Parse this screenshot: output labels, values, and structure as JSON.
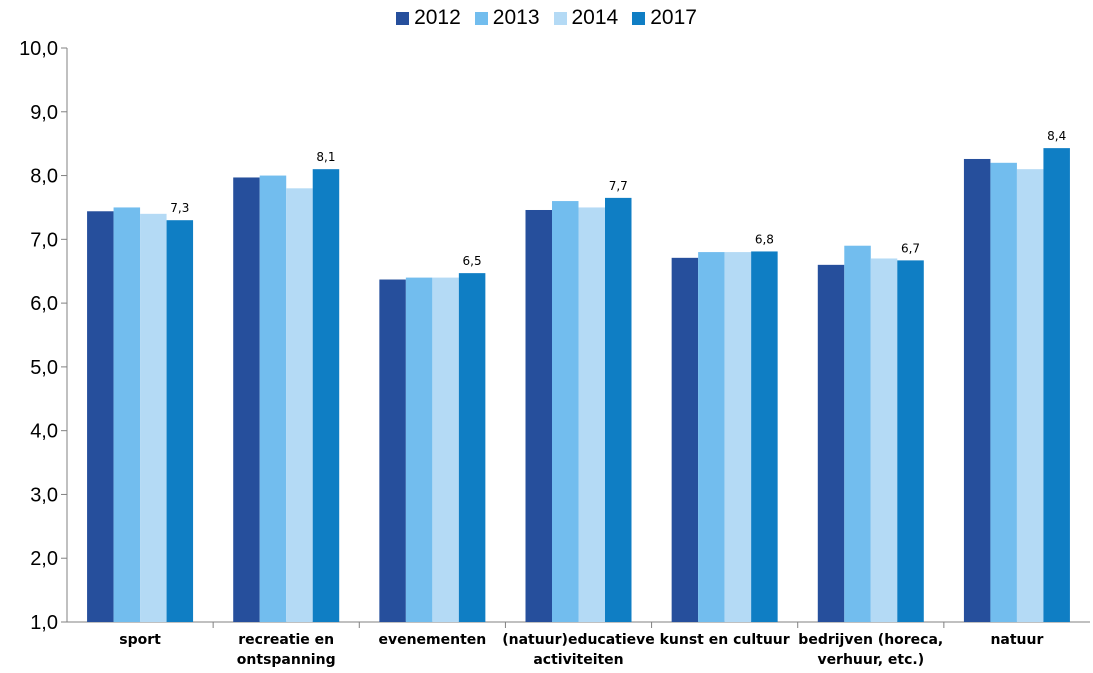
{
  "chart_data": {
    "type": "bar",
    "categories": [
      [
        "sport"
      ],
      [
        "recreatie en",
        "ontspanning"
      ],
      [
        "evenementen"
      ],
      [
        "(natuur)educatieve",
        "activiteiten"
      ],
      [
        "kunst en cultuur"
      ],
      [
        "bedrijven (horeca,",
        "verhuur, etc.)"
      ],
      [
        "natuur"
      ]
    ],
    "series": [
      {
        "name": "2012",
        "color": "#264f9c",
        "values": [
          7.44,
          7.97,
          6.37,
          7.46,
          6.71,
          6.6,
          8.26
        ]
      },
      {
        "name": "2013",
        "color": "#72bdee",
        "values": [
          7.5,
          8.0,
          6.4,
          7.6,
          6.8,
          6.9,
          8.2
        ]
      },
      {
        "name": "2014",
        "color": "#b4daf5",
        "values": [
          7.4,
          7.8,
          6.4,
          7.5,
          6.8,
          6.7,
          8.1
        ]
      },
      {
        "name": "2017",
        "color": "#0f7ec4",
        "values": [
          7.3,
          8.1,
          6.47,
          7.65,
          6.81,
          6.67,
          8.43
        ]
      }
    ],
    "data_labels": [
      "7,3",
      "8,1",
      "6,5",
      "7,7",
      "6,8",
      "6,7",
      "8,4"
    ],
    "yticks": [
      "1,0",
      "2,0",
      "3,0",
      "4,0",
      "5,0",
      "6,0",
      "7,0",
      "8,0",
      "9,0",
      "10,0"
    ],
    "ylim": [
      1,
      10
    ],
    "legend_position": "top-center",
    "grid": false
  }
}
